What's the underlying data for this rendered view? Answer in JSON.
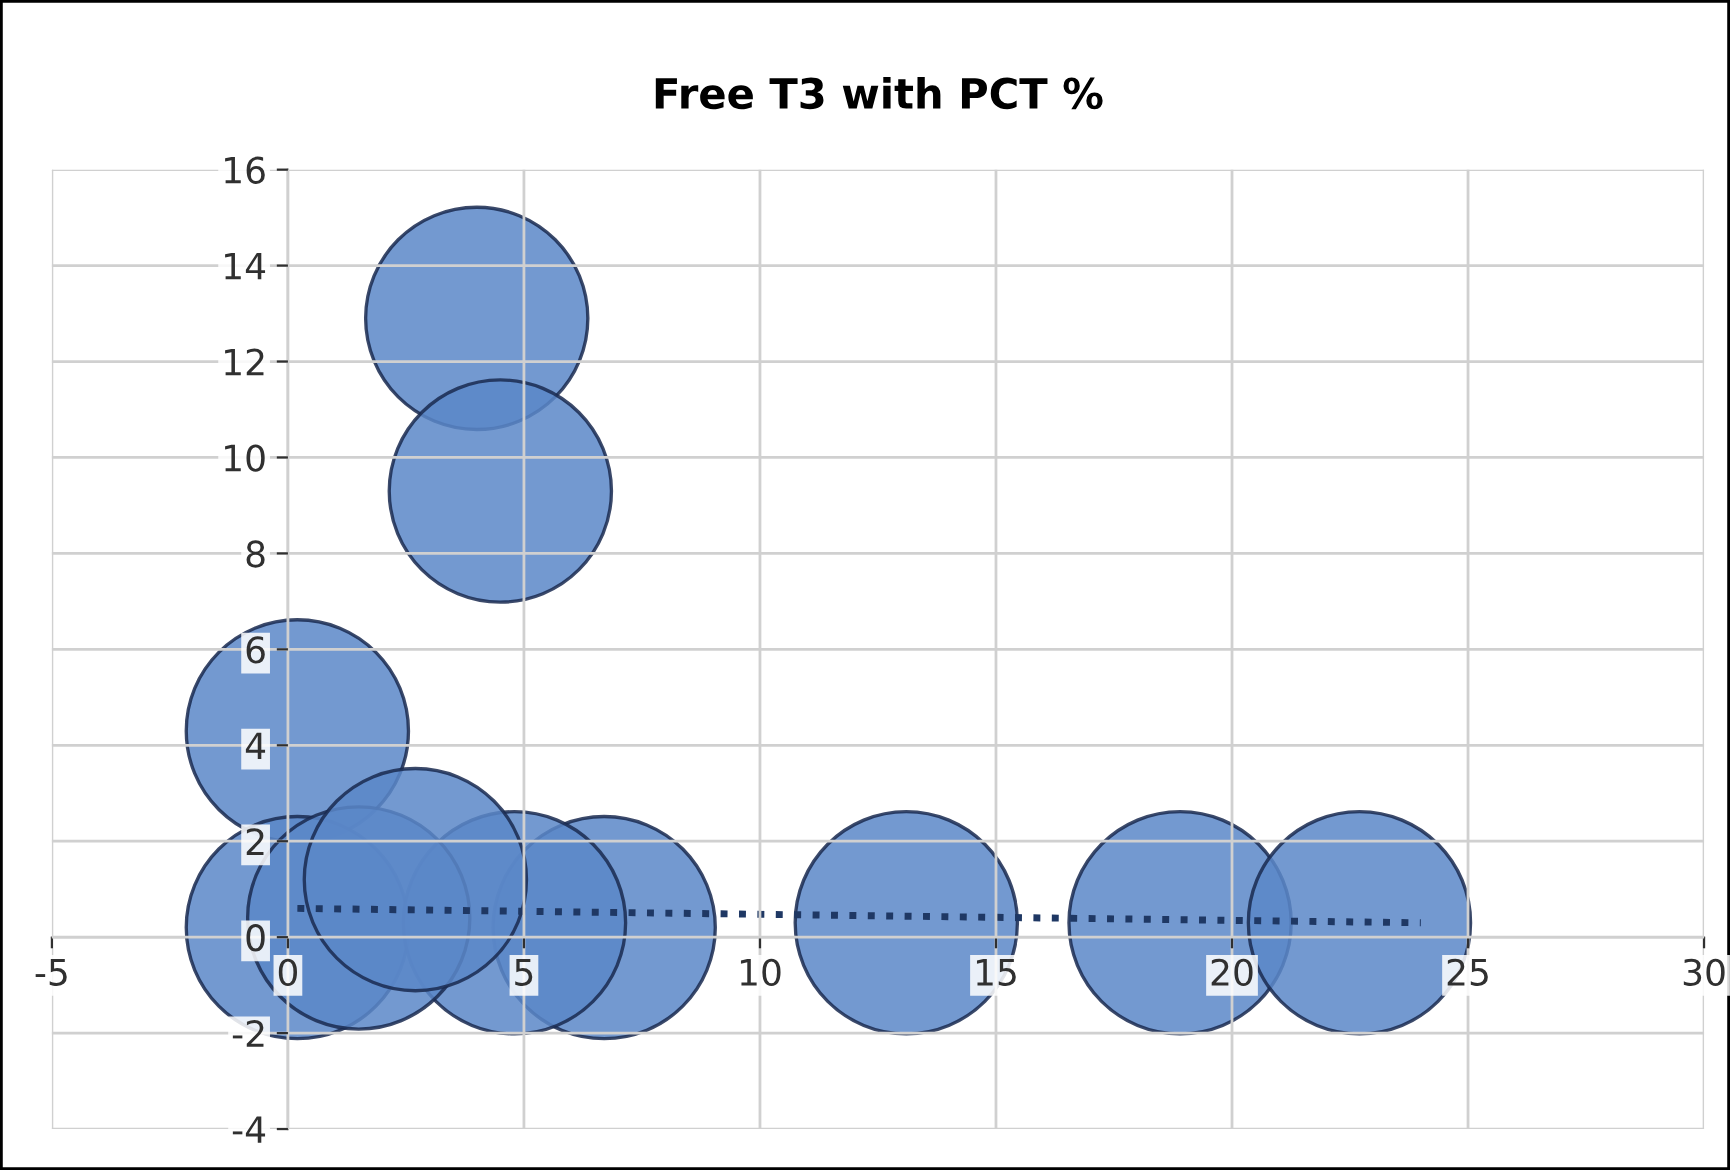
{
  "chart_data": {
    "type": "bubble",
    "title": "Free T3 with PCT %",
    "xlim": [
      -5,
      30
    ],
    "ylim": [
      -4,
      16
    ],
    "xticks": [
      -5,
      0,
      5,
      10,
      15,
      20,
      25,
      30
    ],
    "yticks": [
      -4,
      -2,
      0,
      2,
      4,
      6,
      8,
      10,
      12,
      14,
      16
    ],
    "grid": true,
    "legend": false,
    "marker": "circle",
    "series": [
      {
        "color": "#5a87c8",
        "x": [
          4.0,
          4.5,
          0.2,
          0.2,
          6.7,
          4.8,
          1.5,
          2.7,
          13.1,
          18.9,
          22.7
        ],
        "values": [
          12.9,
          9.3,
          4.3,
          0.2,
          0.2,
          0.3,
          0.4,
          1.2,
          0.3,
          0.3,
          0.3
        ],
        "sizes": [
          1,
          1,
          1,
          1,
          1,
          1,
          1,
          1,
          1,
          1,
          1
        ]
      },
      {
        "type": "line",
        "color": "#1f3864",
        "x": [
          0.2,
          24.0
        ],
        "values": [
          0.6,
          0.3
        ],
        "line_style": "dotted",
        "marker": "none"
      }
    ]
  }
}
